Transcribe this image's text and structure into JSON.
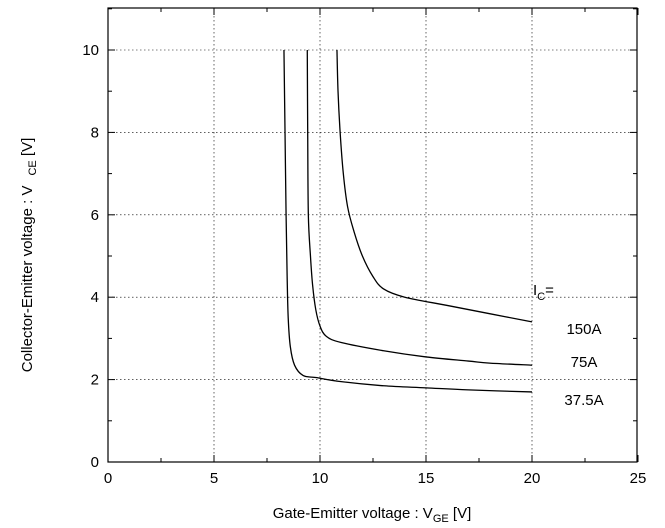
{
  "chart_data": {
    "type": "line",
    "title": "",
    "xlabel": {
      "main": "Gate-Emitter voltage : V",
      "sub": "GE",
      "unit": " [V]"
    },
    "ylabel": {
      "main": "Collector-Emitter voltage : V",
      "sub": "CE",
      "unit": " [V]"
    },
    "xlim": [
      0,
      25
    ],
    "ylim": [
      0,
      11
    ],
    "xticks": [
      0,
      5,
      10,
      15,
      20,
      25
    ],
    "yticks": [
      0,
      2,
      4,
      6,
      8,
      10
    ],
    "xtick_labels": [
      "0",
      "5",
      "10",
      "15",
      "20",
      "25"
    ],
    "ytick_labels": [
      "0",
      "2",
      "4",
      "6",
      "8",
      "10"
    ],
    "grid": true,
    "legend_header": {
      "main": "I",
      "sub": "C",
      "suffix": "="
    },
    "series": [
      {
        "name": "150A",
        "points": [
          [
            10.8,
            10
          ],
          [
            10.85,
            9.0
          ],
          [
            10.95,
            8.0
          ],
          [
            11.1,
            7.0
          ],
          [
            11.3,
            6.2
          ],
          [
            11.6,
            5.6
          ],
          [
            12.0,
            5.0
          ],
          [
            12.5,
            4.5
          ],
          [
            13.0,
            4.2
          ],
          [
            14.0,
            4.0
          ],
          [
            16.0,
            3.8
          ],
          [
            18.0,
            3.6
          ],
          [
            20.0,
            3.4
          ]
        ]
      },
      {
        "name": "75A",
        "points": [
          [
            9.4,
            10
          ],
          [
            9.42,
            8.0
          ],
          [
            9.45,
            6.0
          ],
          [
            9.55,
            5.0
          ],
          [
            9.65,
            4.3
          ],
          [
            9.8,
            3.7
          ],
          [
            10.0,
            3.3
          ],
          [
            10.3,
            3.05
          ],
          [
            11.0,
            2.9
          ],
          [
            13.0,
            2.7
          ],
          [
            15.0,
            2.55
          ],
          [
            17.0,
            2.45
          ],
          [
            18.0,
            2.4
          ],
          [
            20.0,
            2.35
          ]
        ]
      },
      {
        "name": "37.5A",
        "points": [
          [
            8.3,
            10
          ],
          [
            8.35,
            8.0
          ],
          [
            8.4,
            6.0
          ],
          [
            8.45,
            4.5
          ],
          [
            8.5,
            3.5
          ],
          [
            8.6,
            2.8
          ],
          [
            8.8,
            2.35
          ],
          [
            9.2,
            2.1
          ],
          [
            9.8,
            2.05
          ],
          [
            11.0,
            1.95
          ],
          [
            13.0,
            1.85
          ],
          [
            15.0,
            1.8
          ],
          [
            17.0,
            1.75
          ],
          [
            20.0,
            1.7
          ]
        ]
      }
    ]
  }
}
